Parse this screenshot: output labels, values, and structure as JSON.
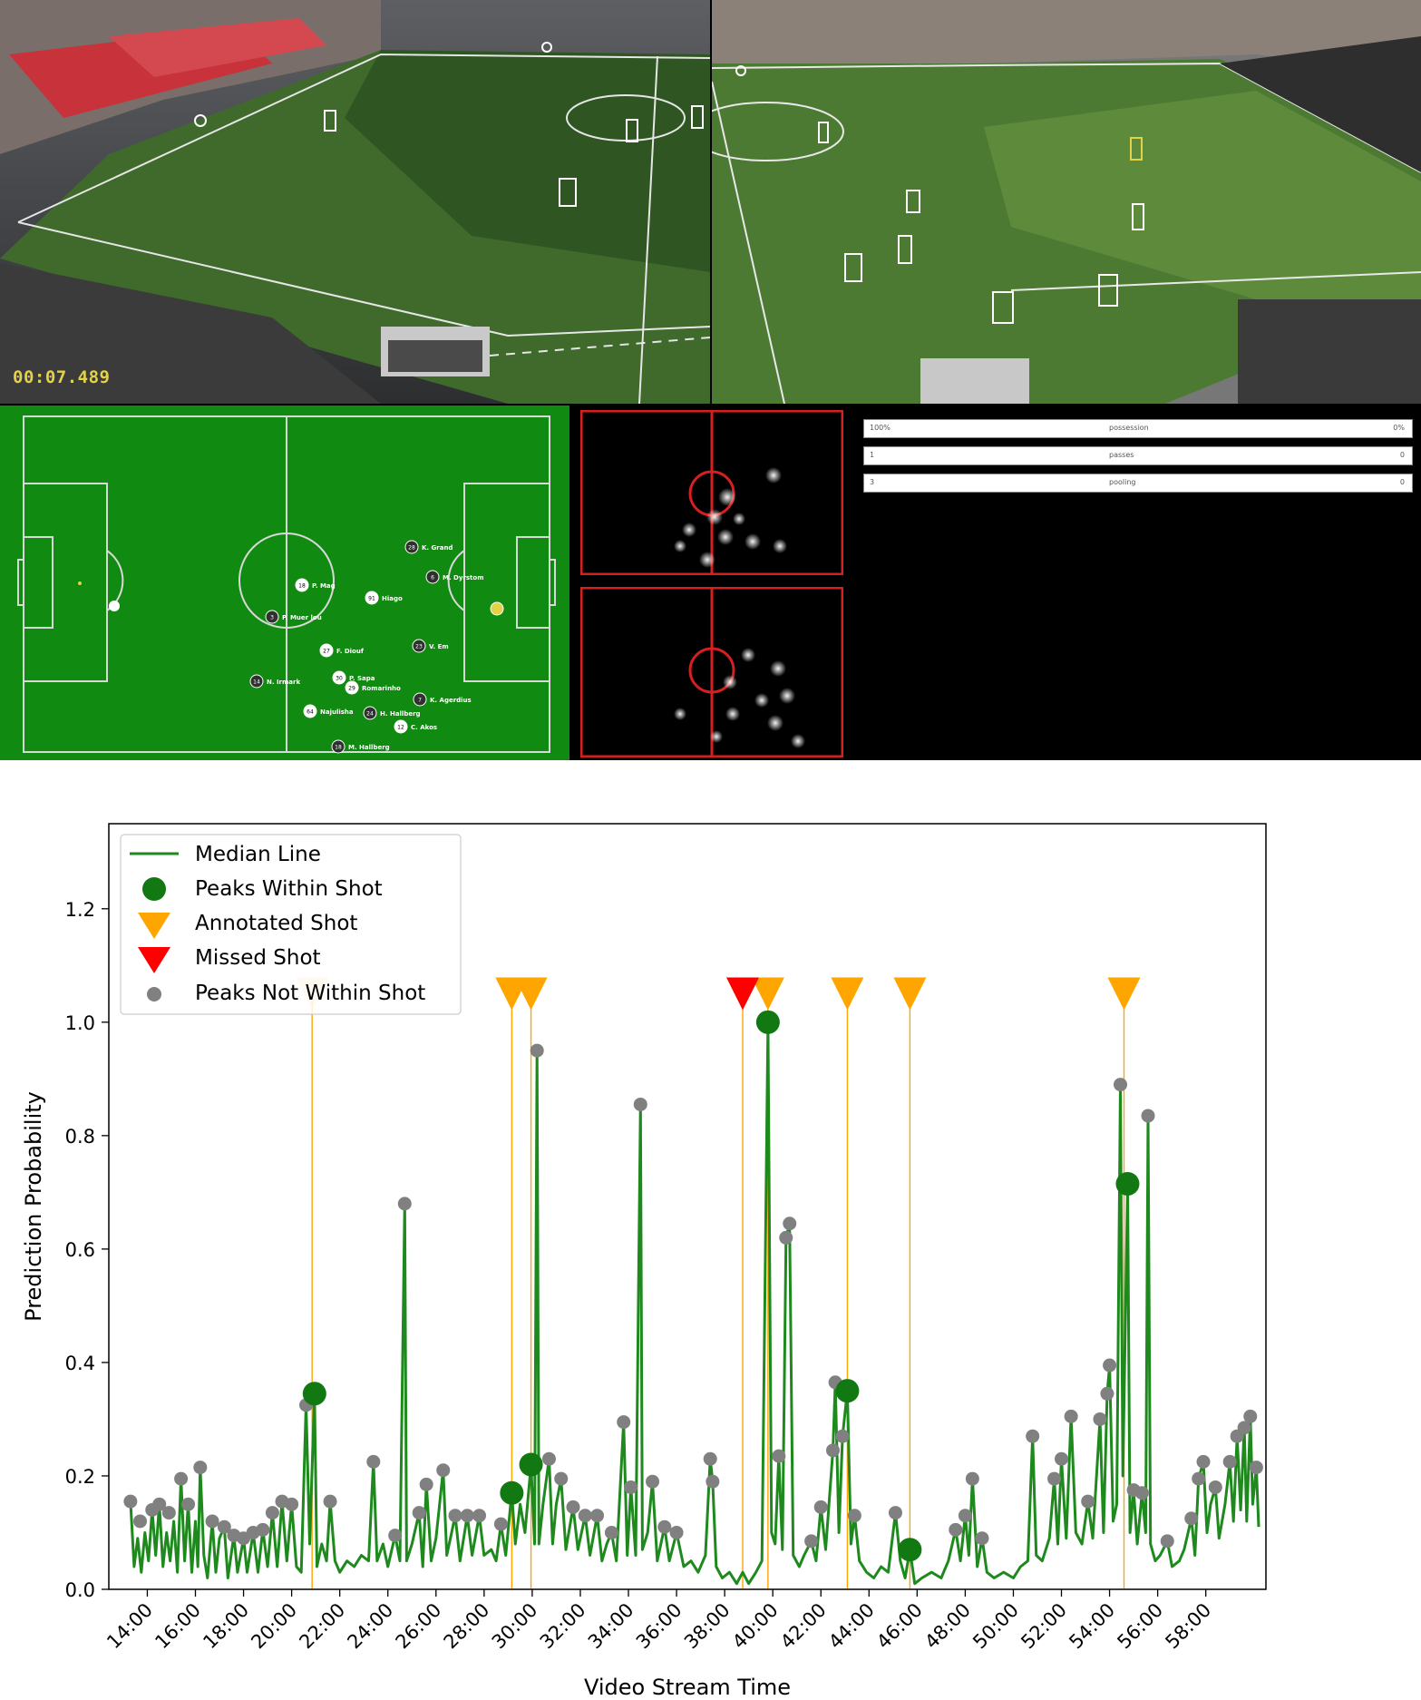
{
  "video": {
    "timestamp": "00:07.489",
    "stats": [
      {
        "left": "100%",
        "label": "possession",
        "right": "0%"
      },
      {
        "left": "1",
        "label": "passes",
        "right": "0"
      },
      {
        "left": "3",
        "label": "pooling",
        "right": "0"
      }
    ],
    "players": [
      {
        "num": "28",
        "name": "K. Grand"
      },
      {
        "num": "18",
        "name": "P. Mag"
      },
      {
        "num": "6",
        "name": "M. Dyrstom"
      },
      {
        "num": "91",
        "name": "Hiago"
      },
      {
        "num": "3",
        "name": "P. Muer lou"
      },
      {
        "num": "27",
        "name": "F. Diouf"
      },
      {
        "num": "23",
        "name": "V. Em"
      },
      {
        "num": "30",
        "name": "P. Sapa"
      },
      {
        "num": "14",
        "name": "N. Irmark"
      },
      {
        "num": "29",
        "name": "Romarinho"
      },
      {
        "num": "7",
        "name": "K. Agerdius"
      },
      {
        "num": "64",
        "name": "Najulisha"
      },
      {
        "num": "24",
        "name": "H. Hallberg"
      },
      {
        "num": "12",
        "name": "C. Akos"
      },
      {
        "num": "18",
        "name": "M. Hallberg"
      }
    ],
    "colors": {
      "pitch": "#118a11",
      "heatmap_frame": "#d62020",
      "timestamp": "#e3d245"
    }
  },
  "chart_data": {
    "type": "line",
    "xlabel": "Video Stream Time",
    "ylabel": "Prediction Probability",
    "x_unit": "minutes of video stream (mm:ss)",
    "xlim": [
      12.4,
      60.5
    ],
    "ylim": [
      0.0,
      1.35
    ],
    "xticks": [
      "14:00",
      "16:00",
      "18:00",
      "20:00",
      "22:00",
      "24:00",
      "26:00",
      "28:00",
      "30:00",
      "32:00",
      "34:00",
      "36:00",
      "38:00",
      "40:00",
      "42:00",
      "44:00",
      "46:00",
      "48:00",
      "50:00",
      "52:00",
      "54:00",
      "56:00",
      "58:00"
    ],
    "xtick_values": [
      14,
      16,
      18,
      20,
      22,
      24,
      26,
      28,
      30,
      32,
      34,
      36,
      38,
      40,
      42,
      44,
      46,
      48,
      50,
      52,
      54,
      56,
      58
    ],
    "yticks": [
      "0.0",
      "0.2",
      "0.4",
      "0.6",
      "0.8",
      "1.0",
      "1.2"
    ],
    "ytick_values": [
      0.0,
      0.2,
      0.4,
      0.6,
      0.8,
      1.0,
      1.2
    ],
    "grid": false,
    "legend_position": "top-left",
    "legend": [
      "Median Line",
      "Peaks Within Shot",
      "Annotated Shot",
      "Missed Shot",
      "Peaks Not Within Shot"
    ],
    "colors": {
      "median_line": "#1e8a1e",
      "peaks_within": "#127812",
      "annotated": "#ffa500",
      "missed": "#ff0000",
      "peaks_not": "#808080"
    },
    "annotated_shots": [
      20.85,
      29.15,
      29.95,
      39.8,
      43.1,
      45.7,
      54.6
    ],
    "missed_shots": [
      38.75
    ],
    "peaks_within_shot": [
      [
        20.95,
        0.345
      ],
      [
        29.15,
        0.17
      ],
      [
        29.95,
        0.22
      ],
      [
        39.8,
        1.0
      ],
      [
        43.1,
        0.35
      ],
      [
        45.7,
        0.07
      ],
      [
        54.75,
        0.715
      ]
    ],
    "peaks_not_within_shot": [
      [
        13.3,
        0.155
      ],
      [
        13.7,
        0.12
      ],
      [
        14.2,
        0.14
      ],
      [
        14.5,
        0.15
      ],
      [
        14.9,
        0.135
      ],
      [
        15.4,
        0.195
      ],
      [
        15.7,
        0.15
      ],
      [
        16.2,
        0.215
      ],
      [
        16.7,
        0.12
      ],
      [
        17.2,
        0.11
      ],
      [
        17.6,
        0.095
      ],
      [
        18.0,
        0.09
      ],
      [
        18.4,
        0.1
      ],
      [
        18.8,
        0.105
      ],
      [
        19.2,
        0.135
      ],
      [
        19.6,
        0.155
      ],
      [
        20.0,
        0.15
      ],
      [
        20.6,
        0.325
      ],
      [
        21.6,
        0.155
      ],
      [
        23.4,
        0.225
      ],
      [
        24.3,
        0.095
      ],
      [
        24.7,
        0.68
      ],
      [
        25.3,
        0.135
      ],
      [
        25.6,
        0.185
      ],
      [
        26.3,
        0.21
      ],
      [
        26.8,
        0.13
      ],
      [
        27.3,
        0.13
      ],
      [
        27.8,
        0.13
      ],
      [
        28.7,
        0.115
      ],
      [
        30.2,
        0.95
      ],
      [
        30.7,
        0.23
      ],
      [
        31.2,
        0.195
      ],
      [
        31.7,
        0.145
      ],
      [
        32.2,
        0.13
      ],
      [
        32.7,
        0.13
      ],
      [
        33.3,
        0.1
      ],
      [
        33.8,
        0.295
      ],
      [
        34.1,
        0.18
      ],
      [
        34.5,
        0.855
      ],
      [
        35.0,
        0.19
      ],
      [
        35.5,
        0.11
      ],
      [
        36.0,
        0.1
      ],
      [
        37.4,
        0.23
      ],
      [
        37.5,
        0.19
      ],
      [
        40.25,
        0.235
      ],
      [
        40.55,
        0.62
      ],
      [
        40.7,
        0.645
      ],
      [
        41.6,
        0.085
      ],
      [
        42.0,
        0.145
      ],
      [
        42.5,
        0.245
      ],
      [
        42.6,
        0.365
      ],
      [
        42.9,
        0.27
      ],
      [
        43.4,
        0.13
      ],
      [
        45.1,
        0.135
      ],
      [
        47.6,
        0.105
      ],
      [
        48.0,
        0.13
      ],
      [
        48.3,
        0.195
      ],
      [
        48.7,
        0.09
      ],
      [
        50.8,
        0.27
      ],
      [
        51.7,
        0.195
      ],
      [
        52.0,
        0.23
      ],
      [
        52.4,
        0.305
      ],
      [
        53.1,
        0.155
      ],
      [
        53.6,
        0.3
      ],
      [
        53.9,
        0.345
      ],
      [
        54.0,
        0.395
      ],
      [
        54.45,
        0.89
      ],
      [
        55.0,
        0.175
      ],
      [
        55.35,
        0.17
      ],
      [
        55.6,
        0.835
      ],
      [
        56.4,
        0.085
      ],
      [
        57.4,
        0.125
      ],
      [
        57.7,
        0.195
      ],
      [
        57.9,
        0.225
      ],
      [
        58.4,
        0.18
      ],
      [
        59.0,
        0.225
      ],
      [
        59.3,
        0.27
      ],
      [
        59.6,
        0.285
      ],
      [
        59.85,
        0.305
      ],
      [
        60.1,
        0.215
      ]
    ],
    "median_line": [
      [
        13.3,
        0.155
      ],
      [
        13.45,
        0.04
      ],
      [
        13.6,
        0.09
      ],
      [
        13.75,
        0.03
      ],
      [
        13.9,
        0.1
      ],
      [
        14.05,
        0.05
      ],
      [
        14.2,
        0.14
      ],
      [
        14.35,
        0.06
      ],
      [
        14.5,
        0.15
      ],
      [
        14.65,
        0.04
      ],
      [
        14.8,
        0.1
      ],
      [
        14.95,
        0.05
      ],
      [
        15.1,
        0.12
      ],
      [
        15.25,
        0.03
      ],
      [
        15.4,
        0.195
      ],
      [
        15.55,
        0.05
      ],
      [
        15.7,
        0.15
      ],
      [
        15.85,
        0.03
      ],
      [
        16.0,
        0.12
      ],
      [
        16.1,
        0.04
      ],
      [
        16.2,
        0.215
      ],
      [
        16.35,
        0.06
      ],
      [
        16.5,
        0.02
      ],
      [
        16.7,
        0.12
      ],
      [
        16.85,
        0.03
      ],
      [
        17.0,
        0.09
      ],
      [
        17.2,
        0.11
      ],
      [
        17.35,
        0.02
      ],
      [
        17.6,
        0.095
      ],
      [
        17.75,
        0.03
      ],
      [
        18.0,
        0.09
      ],
      [
        18.15,
        0.03
      ],
      [
        18.4,
        0.1
      ],
      [
        18.6,
        0.03
      ],
      [
        18.8,
        0.105
      ],
      [
        19.0,
        0.04
      ],
      [
        19.2,
        0.135
      ],
      [
        19.4,
        0.04
      ],
      [
        19.6,
        0.155
      ],
      [
        19.8,
        0.05
      ],
      [
        20.0,
        0.15
      ],
      [
        20.2,
        0.04
      ],
      [
        20.4,
        0.03
      ],
      [
        20.6,
        0.325
      ],
      [
        20.75,
        0.08
      ],
      [
        20.95,
        0.345
      ],
      [
        21.05,
        0.04
      ],
      [
        21.25,
        0.08
      ],
      [
        21.45,
        0.05
      ],
      [
        21.6,
        0.155
      ],
      [
        21.8,
        0.05
      ],
      [
        22.0,
        0.03
      ],
      [
        22.3,
        0.05
      ],
      [
        22.6,
        0.04
      ],
      [
        22.9,
        0.06
      ],
      [
        23.2,
        0.05
      ],
      [
        23.4,
        0.225
      ],
      [
        23.55,
        0.05
      ],
      [
        23.8,
        0.08
      ],
      [
        24.0,
        0.04
      ],
      [
        24.3,
        0.095
      ],
      [
        24.5,
        0.05
      ],
      [
        24.7,
        0.68
      ],
      [
        24.78,
        0.05
      ],
      [
        25.0,
        0.08
      ],
      [
        25.3,
        0.135
      ],
      [
        25.45,
        0.04
      ],
      [
        25.6,
        0.185
      ],
      [
        25.8,
        0.05
      ],
      [
        26.0,
        0.09
      ],
      [
        26.3,
        0.21
      ],
      [
        26.45,
        0.06
      ],
      [
        26.6,
        0.09
      ],
      [
        26.8,
        0.13
      ],
      [
        27.0,
        0.05
      ],
      [
        27.3,
        0.13
      ],
      [
        27.5,
        0.06
      ],
      [
        27.8,
        0.13
      ],
      [
        28.0,
        0.06
      ],
      [
        28.3,
        0.07
      ],
      [
        28.5,
        0.05
      ],
      [
        28.7,
        0.115
      ],
      [
        28.9,
        0.06
      ],
      [
        29.15,
        0.17
      ],
      [
        29.3,
        0.08
      ],
      [
        29.5,
        0.15
      ],
      [
        29.7,
        0.1
      ],
      [
        29.95,
        0.22
      ],
      [
        30.1,
        0.08
      ],
      [
        30.2,
        0.95
      ],
      [
        30.28,
        0.08
      ],
      [
        30.45,
        0.15
      ],
      [
        30.7,
        0.23
      ],
      [
        30.85,
        0.08
      ],
      [
        31.0,
        0.15
      ],
      [
        31.2,
        0.195
      ],
      [
        31.4,
        0.07
      ],
      [
        31.7,
        0.145
      ],
      [
        31.9,
        0.07
      ],
      [
        32.2,
        0.13
      ],
      [
        32.4,
        0.06
      ],
      [
        32.7,
        0.13
      ],
      [
        32.9,
        0.05
      ],
      [
        33.1,
        0.08
      ],
      [
        33.3,
        0.1
      ],
      [
        33.5,
        0.05
      ],
      [
        33.8,
        0.295
      ],
      [
        33.95,
        0.06
      ],
      [
        34.1,
        0.18
      ],
      [
        34.3,
        0.06
      ],
      [
        34.5,
        0.855
      ],
      [
        34.58,
        0.07
      ],
      [
        34.8,
        0.1
      ],
      [
        35.0,
        0.19
      ],
      [
        35.2,
        0.05
      ],
      [
        35.5,
        0.11
      ],
      [
        35.7,
        0.05
      ],
      [
        36.0,
        0.1
      ],
      [
        36.3,
        0.04
      ],
      [
        36.6,
        0.05
      ],
      [
        36.9,
        0.03
      ],
      [
        37.2,
        0.06
      ],
      [
        37.4,
        0.23
      ],
      [
        37.5,
        0.19
      ],
      [
        37.65,
        0.04
      ],
      [
        37.9,
        0.02
      ],
      [
        38.2,
        0.03
      ],
      [
        38.5,
        0.01
      ],
      [
        38.75,
        0.03
      ],
      [
        39.0,
        0.01
      ],
      [
        39.3,
        0.03
      ],
      [
        39.55,
        0.05
      ],
      [
        39.8,
        1.0
      ],
      [
        39.95,
        0.1
      ],
      [
        40.1,
        0.08
      ],
      [
        40.25,
        0.235
      ],
      [
        40.4,
        0.07
      ],
      [
        40.55,
        0.62
      ],
      [
        40.7,
        0.645
      ],
      [
        40.85,
        0.06
      ],
      [
        41.1,
        0.04
      ],
      [
        41.3,
        0.06
      ],
      [
        41.6,
        0.085
      ],
      [
        41.8,
        0.05
      ],
      [
        42.0,
        0.145
      ],
      [
        42.2,
        0.07
      ],
      [
        42.5,
        0.245
      ],
      [
        42.6,
        0.365
      ],
      [
        42.75,
        0.1
      ],
      [
        42.9,
        0.27
      ],
      [
        43.1,
        0.35
      ],
      [
        43.25,
        0.08
      ],
      [
        43.4,
        0.13
      ],
      [
        43.6,
        0.05
      ],
      [
        43.9,
        0.03
      ],
      [
        44.2,
        0.02
      ],
      [
        44.5,
        0.04
      ],
      [
        44.8,
        0.03
      ],
      [
        45.1,
        0.135
      ],
      [
        45.3,
        0.05
      ],
      [
        45.5,
        0.02
      ],
      [
        45.7,
        0.07
      ],
      [
        45.9,
        0.01
      ],
      [
        46.2,
        0.02
      ],
      [
        46.6,
        0.03
      ],
      [
        47.0,
        0.02
      ],
      [
        47.3,
        0.05
      ],
      [
        47.6,
        0.105
      ],
      [
        47.8,
        0.05
      ],
      [
        48.0,
        0.13
      ],
      [
        48.15,
        0.06
      ],
      [
        48.3,
        0.195
      ],
      [
        48.5,
        0.04
      ],
      [
        48.7,
        0.09
      ],
      [
        48.9,
        0.03
      ],
      [
        49.2,
        0.02
      ],
      [
        49.6,
        0.03
      ],
      [
        50.0,
        0.02
      ],
      [
        50.3,
        0.04
      ],
      [
        50.6,
        0.05
      ],
      [
        50.8,
        0.27
      ],
      [
        50.95,
        0.06
      ],
      [
        51.2,
        0.05
      ],
      [
        51.5,
        0.09
      ],
      [
        51.7,
        0.195
      ],
      [
        51.85,
        0.08
      ],
      [
        52.0,
        0.23
      ],
      [
        52.2,
        0.09
      ],
      [
        52.4,
        0.305
      ],
      [
        52.6,
        0.1
      ],
      [
        52.85,
        0.08
      ],
      [
        53.1,
        0.155
      ],
      [
        53.3,
        0.09
      ],
      [
        53.6,
        0.3
      ],
      [
        53.75,
        0.1
      ],
      [
        53.9,
        0.345
      ],
      [
        54.0,
        0.395
      ],
      [
        54.15,
        0.12
      ],
      [
        54.3,
        0.15
      ],
      [
        54.45,
        0.89
      ],
      [
        54.55,
        0.2
      ],
      [
        54.75,
        0.715
      ],
      [
        54.85,
        0.1
      ],
      [
        55.0,
        0.175
      ],
      [
        55.15,
        0.08
      ],
      [
        55.35,
        0.17
      ],
      [
        55.5,
        0.1
      ],
      [
        55.6,
        0.835
      ],
      [
        55.7,
        0.08
      ],
      [
        55.9,
        0.05
      ],
      [
        56.1,
        0.06
      ],
      [
        56.4,
        0.085
      ],
      [
        56.6,
        0.04
      ],
      [
        56.9,
        0.05
      ],
      [
        57.1,
        0.07
      ],
      [
        57.4,
        0.125
      ],
      [
        57.55,
        0.06
      ],
      [
        57.7,
        0.195
      ],
      [
        57.9,
        0.225
      ],
      [
        58.05,
        0.1
      ],
      [
        58.2,
        0.15
      ],
      [
        58.4,
        0.18
      ],
      [
        58.55,
        0.09
      ],
      [
        58.8,
        0.15
      ],
      [
        59.0,
        0.225
      ],
      [
        59.15,
        0.12
      ],
      [
        59.3,
        0.27
      ],
      [
        59.45,
        0.14
      ],
      [
        59.6,
        0.285
      ],
      [
        59.7,
        0.12
      ],
      [
        59.85,
        0.305
      ],
      [
        59.95,
        0.15
      ],
      [
        60.1,
        0.215
      ],
      [
        60.2,
        0.11
      ]
    ]
  }
}
